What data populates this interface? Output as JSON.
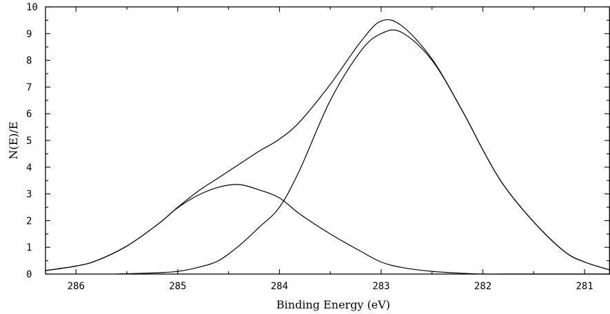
{
  "chart_data": {
    "type": "line",
    "title": "",
    "xlabel": "Binding Energy (eV)",
    "ylabel": "N(E)/E",
    "xlim": [
      286.3,
      280.75
    ],
    "ylim": [
      0,
      10
    ],
    "x_reversed": true,
    "x_ticks": [
      "286",
      "285",
      "284",
      "283",
      "282",
      "281"
    ],
    "y_ticks": [
      "0",
      "1",
      "2",
      "3",
      "4",
      "5",
      "6",
      "7",
      "8",
      "9",
      "10"
    ],
    "grid": false,
    "legend": "none",
    "series": [
      {
        "x": [
          286.3,
          286.0,
          285.8,
          285.5,
          285.2,
          285.0,
          284.8,
          284.6,
          284.4,
          284.2,
          284.0,
          283.8,
          283.5,
          283.2,
          283.0,
          282.8,
          282.5,
          282.2,
          282.0,
          281.8,
          281.5,
          281.2,
          281.0,
          280.75
        ],
        "values": [
          0.13,
          0.3,
          0.5,
          1.05,
          1.85,
          2.5,
          3.1,
          3.6,
          4.1,
          4.6,
          5.05,
          5.7,
          7.1,
          8.7,
          9.47,
          9.3,
          8.05,
          6.1,
          4.65,
          3.35,
          1.95,
          0.85,
          0.45,
          0.15
        ]
      },
      {
        "x": [
          286.3,
          286.0,
          285.8,
          285.5,
          285.2,
          285.0,
          284.8,
          284.6,
          284.4,
          284.2,
          284.0,
          283.8,
          283.5,
          283.2,
          283.0,
          282.8,
          282.5,
          282.2,
          282.0,
          281.8,
          281.5,
          281.2,
          281.0,
          280.75
        ],
        "values": [
          0.13,
          0.3,
          0.5,
          1.05,
          1.85,
          2.48,
          2.95,
          3.25,
          3.35,
          3.15,
          2.85,
          2.25,
          1.5,
          0.85,
          0.45,
          0.25,
          0.1,
          0.03,
          0.0,
          0.0,
          0.0,
          0.0,
          0.0,
          0.0
        ]
      },
      {
        "x": [
          285.6,
          285.2,
          285.0,
          284.8,
          284.6,
          284.4,
          284.2,
          284.0,
          283.8,
          283.5,
          283.2,
          283.0,
          282.8,
          282.5,
          282.2,
          282.0,
          281.8,
          281.5,
          281.2,
          281.0,
          280.75
        ],
        "values": [
          0.0,
          0.05,
          0.1,
          0.25,
          0.5,
          1.05,
          1.75,
          2.5,
          3.9,
          6.5,
          8.35,
          9.0,
          9.05,
          8.0,
          6.1,
          4.65,
          3.35,
          1.95,
          0.85,
          0.45,
          0.15
        ]
      }
    ]
  }
}
